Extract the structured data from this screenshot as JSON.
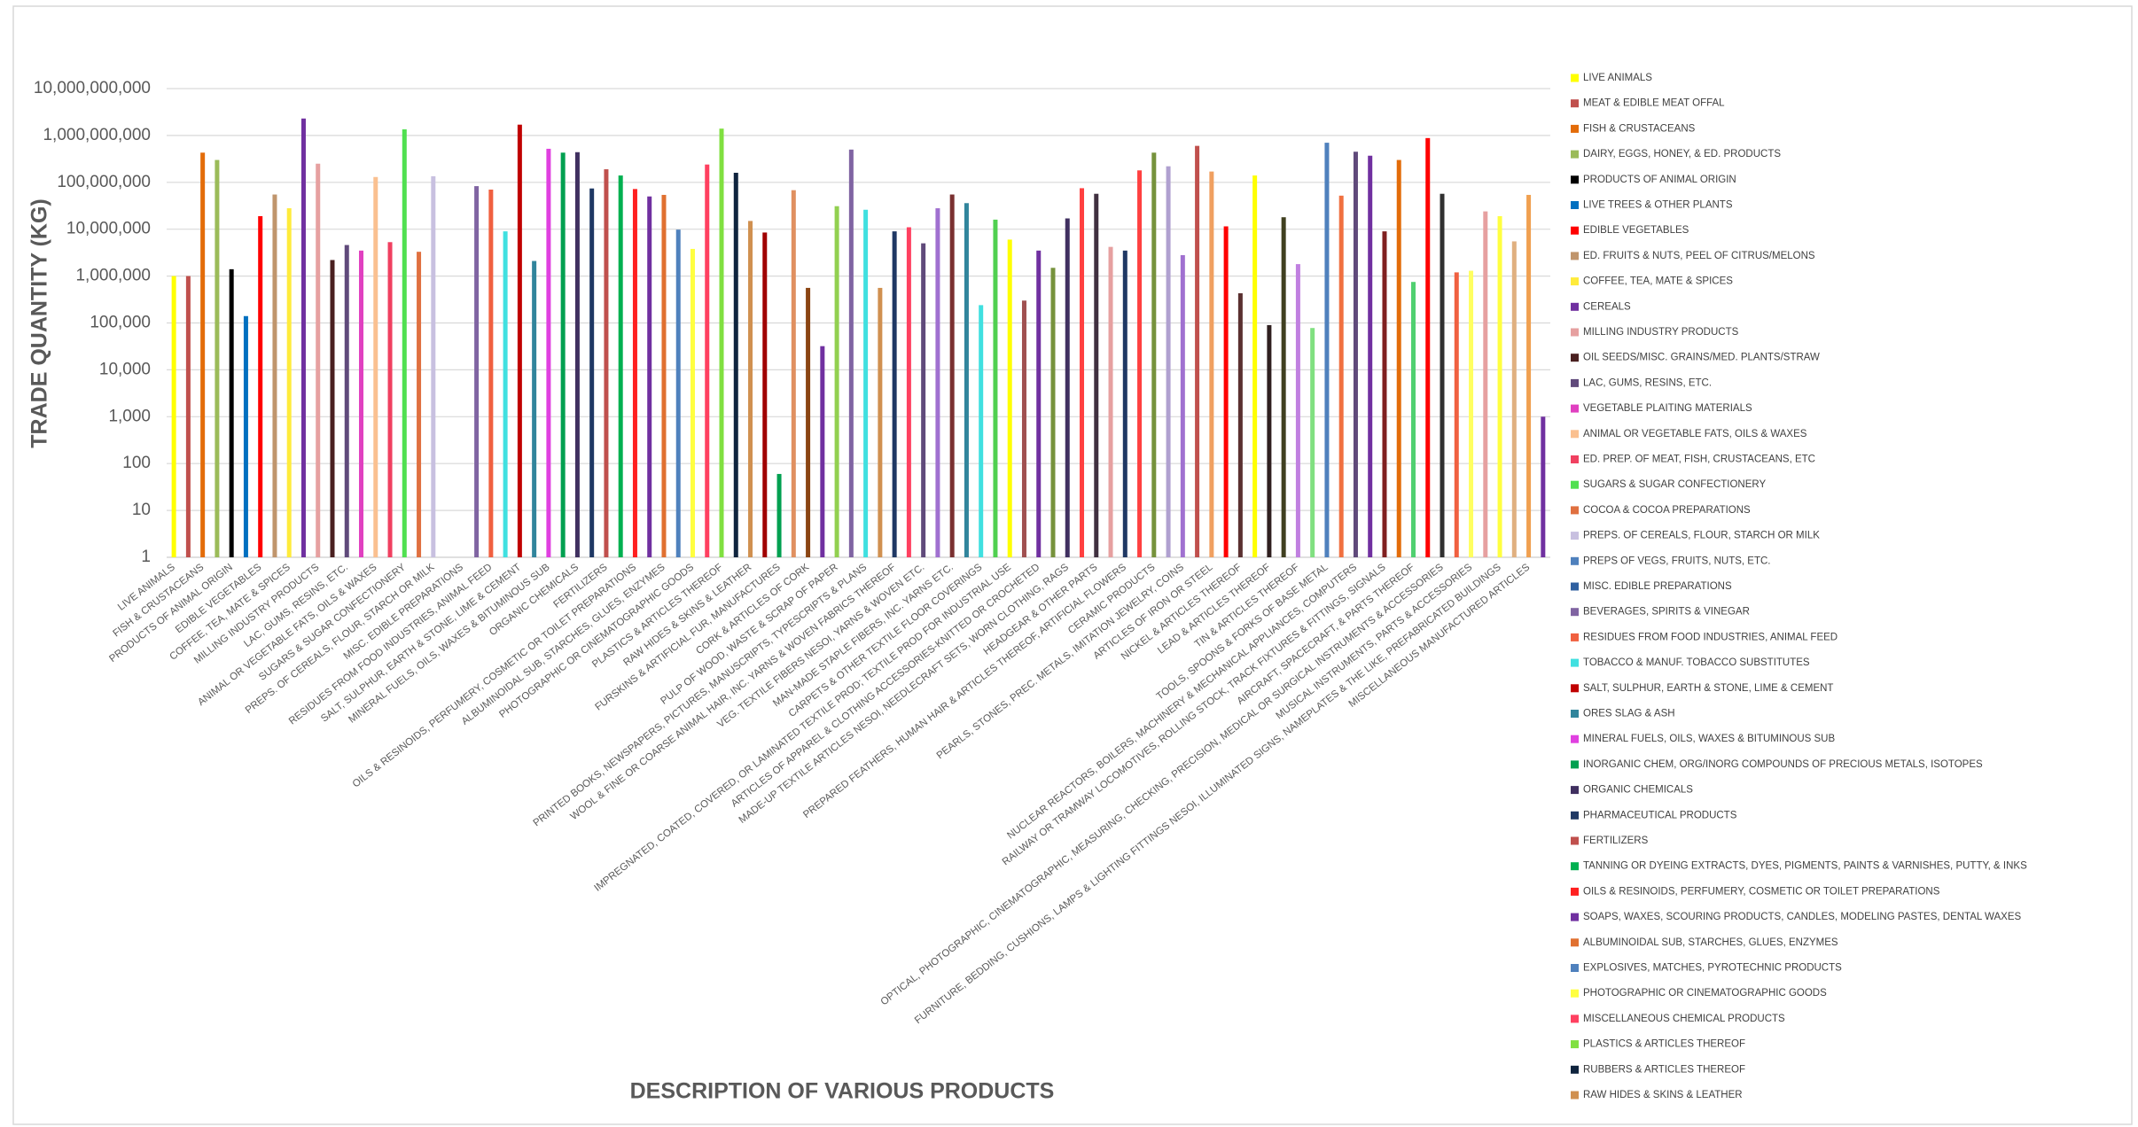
{
  "chart_data": {
    "type": "bar",
    "y_label": "TRADE QUANTITY (KG)",
    "x_label": "DESCRIPTION OF VARIOUS PRODUCTS",
    "log_scale": true,
    "grid": true,
    "legend_position": "right",
    "ylim": [
      1,
      10000000000
    ],
    "yticks": [
      1,
      10,
      100,
      {
        "value": 1000,
        "label": "1,000"
      },
      {
        "value": 10000,
        "label": "10,000"
      },
      {
        "value": 100000,
        "label": "100,000"
      },
      {
        "value": 1000000,
        "label": "1,000,000"
      },
      {
        "value": 10000000,
        "label": "10,000,000"
      },
      {
        "value": 100000000,
        "label": "100,000,000"
      },
      {
        "value": 1000000000,
        "label": "1,000,000,000"
      },
      {
        "value": 10000000000,
        "label": "10,000,000,000"
      }
    ],
    "categories": [
      "LIVE ANIMALS",
      null,
      "FISH & CRUSTACEANS",
      null,
      "PRODUCTS OF ANIMAL ORIGIN",
      null,
      "EDIBLE VEGETABLES",
      null,
      "COFFEE, TEA, MATE & SPICES",
      null,
      "MILLING INDUSTRY PRODUCTS",
      null,
      "LAC, GUMS, RESINS, ETC.",
      null,
      "ANIMAL OR VEGETABLE FATS, OILS & WAXES",
      null,
      "SUGARS & SUGAR CONFECTIONERY",
      null,
      "PREPS. OF CEREALS, FLOUR, STARCH OR MILK",
      null,
      "MISC. EDIBLE PREPARATIONS",
      null,
      "RESIDUES FROM FOOD INDUSTRIES, ANIMAL FEED",
      null,
      "SALT, SULPHUR, EARTH & STONE, LIME & CEMENT",
      null,
      "MINERAL FUELS, OILS, WAXES & BITUMINOUS SUB",
      null,
      "ORGANIC CHEMICALS",
      null,
      "FERTILIZERS",
      null,
      "OILS & RESINOIDS, PERFUMERY, COSMETIC OR TOILET PREPARATIONS",
      null,
      "ALBUMINOIDAL SUB, STARCHES, GLUES, ENZYMES",
      null,
      "PHOTOGRAPHIC OR CINEMATOGRAPHIC GOODS",
      null,
      "PLASTICS & ARTICLES THEREOF",
      null,
      "RAW HIDES & SKINS & LEATHER",
      null,
      "FURSKINS & ARTIFICIAL FUR, MANUFACTURES",
      null,
      "CORK & ARTICLES OF CORK",
      null,
      "PULP OF WOOD, WASTE & SCRAP OF PAPER",
      null,
      "PRINTED BOOKS, NEWSPAPERS, PICTURES, MANUSCRIPTS, TYPESCRIPTS & PLANS",
      null,
      "WOOL & FINE OR COARSE ANIMAL HAIR, INC. YARNS & WOVEN FABRICS THEREOF",
      null,
      "VEG. TEXTILE FIBERS NESOI, YARNS & WOVEN ETC.",
      null,
      "MAN-MADE STAPLE FIBERS, INC. YARNS ETC.",
      null,
      "CARPETS & OTHER TEXTILE FLOOR COVERINGS",
      null,
      "IMPREGNATED, COATED, COVERED, OR LAMINATED TEXTILE PROD; TEXTILE PROD FOR INDUSTRIAL USE",
      null,
      "ARTICLES OF APPAREL & CLOTHING ACCESSORIES-KNITTED OR CROCHETED",
      null,
      "MADE-UP TEXTILE ARTICLES NESOI, NEEDLECRAFT SETS, WORN CLOTHING, RAGS",
      null,
      "HEADGEAR & OTHER PARTS",
      null,
      "PREPARED FEATHERS, HUMAN HAIR & ARTICLES THEREOF, ARTIFICIAL FLOWERS",
      null,
      "CERAMIC PRODUCTS",
      null,
      "PEARLS, STONES, PREC. METALS, IMITATION JEWELRY, COINS",
      null,
      "ARTICLES OF IRON OR STEEL",
      null,
      "NICKEL & ARTICLES THEREOF",
      null,
      "LEAD & ARTICLES THEREOF",
      null,
      "TIN & ARTICLES THEREOF",
      null,
      "TOOLS, SPOONS & FORKS OF BASE METAL",
      null,
      "NUCLEAR REACTORS, BOILERS, MACHINERY & MECHANICAL APPLIANCES, COMPUTERS",
      null,
      "RAILWAY OR TRAMWAY LOCOMOTIVES, ROLLING STOCK, TRACK FIXTURES & FITTINGS, SIGNALS",
      null,
      "AIRCRAFT, SPACECRAFT, & PARTS THEREOF",
      null,
      "OPTICAL, PHOTOGRAPHIC, CINEMATOGRAPHIC, MEASURING, CHECKING, PRECISION, MEDICAL OR SURGICAL INSTRUMENTS & ACCESSORIES",
      null,
      "MUSICAL INSTRUMENTS, PARTS & ACCESSORIES",
      null,
      "FURNITURE, BEDDING, CUSHIONS, LAMPS & LIGHTING FITTINGS NESOI, ILLUMINATED SIGNS, NAMEPLATES & THE LIKE, PREFABRICATED BUILDINGS",
      null,
      "MISCELLANEOUS MANUFACTURED ARTICLES",
      null
    ],
    "values": [
      1000000,
      1000000,
      430000000,
      300000000,
      1400000,
      140000,
      19000000,
      55000000,
      28000000,
      2300000000,
      250000000,
      2200000,
      4600000,
      3500000,
      130000000,
      5300000,
      1350000000,
      3300000,
      135000000,
      null,
      null,
      83000000,
      70000000,
      9000000,
      1700000000,
      2100000,
      520000000,
      430000000,
      440000000,
      74000000,
      190000000,
      140000000,
      72000000,
      50000000,
      54000000,
      9800000,
      3800000,
      240000000,
      1400000000,
      160000000,
      15000000,
      8500000,
      60,
      68000000,
      560000,
      32000,
      31000000,
      500000000,
      26000000,
      560000,
      9000000,
      11000000,
      5000000,
      28000000,
      55000000,
      36000000,
      240000,
      16000000,
      6000000,
      300000,
      3500000,
      1500000,
      17000000,
      75000000,
      57000000,
      4200000,
      3500000,
      180000000,
      430000000,
      220000000,
      2800000,
      600000000,
      170000000,
      11500000,
      430000,
      140000000,
      90000,
      18000000,
      1800000,
      78000,
      700000000,
      52000000,
      450000000,
      370000000,
      9000000,
      300000000,
      750000,
      880000000,
      57000000,
      1200000,
      1300000,
      24000000,
      19000000,
      5500000,
      54000000,
      1000
    ],
    "colors": [
      "#ffff00",
      "#c0504d",
      "#e36c09",
      "#9bbb59",
      "#000000",
      "#0070c0",
      "#ff0000",
      "#c0956c",
      "#ffeb3b",
      "#7030a0",
      "#e6a0a0",
      "#4a2020",
      "#604a7b",
      "#e040c0",
      "#fac090",
      "#f04060",
      "#50e050",
      "#e07040",
      "#c8c0e0",
      "#4f81bd",
      "#3060a0",
      "#8064a2",
      "#f06040",
      "#40e0e0",
      "#c00000",
      "#31859c",
      "#e040e0",
      "#00a050",
      "#403060",
      "#1f3864",
      "#c0504d",
      "#00b050",
      "#ff2020",
      "#7030a0",
      "#e07030",
      "#4f81bd",
      "#ffff40",
      "#ff4060",
      "#80e040",
      "#0f243e",
      "#d09050",
      "#a00000",
      "#00a050",
      "#e09060",
      "#8b4513",
      "#7030a0",
      "#92d050",
      "#8064a2",
      "#40e0e0",
      "#d09050",
      "#1f3864",
      "#ff4060",
      "#604a7b",
      "#a070d0",
      "#7a3030",
      "#31859c",
      "#40e0e0",
      "#50d050",
      "#ffff00",
      "#a05050",
      "#7030a0",
      "#76923c",
      "#403060",
      "#ff4040",
      "#403040",
      "#e6a0a0",
      "#1f3864",
      "#ff4040",
      "#76923c",
      "#b0a0d0",
      "#a070d0",
      "#c0504d",
      "#f0a060",
      "#ff0000",
      "#5a3030",
      "#ffff00",
      "#302020",
      "#404020",
      "#c080e0",
      "#80e080",
      "#4f81bd",
      "#f07040",
      "#604a7b",
      "#7030a0",
      "#802020",
      "#e36c09",
      "#50d070",
      "#ff0000",
      "#303030",
      "#f06040",
      "#ffff60",
      "#e6a0a0",
      "#ffff40",
      "#e0b080",
      "#f0a050",
      "#7030a0"
    ],
    "legend": [
      "LIVE ANIMALS",
      "MEAT & EDIBLE MEAT OFFAL",
      "FISH & CRUSTACEANS",
      "DAIRY, EGGS, HONEY, & ED. PRODUCTS",
      "PRODUCTS OF ANIMAL ORIGIN",
      "LIVE TREES & OTHER PLANTS",
      "EDIBLE VEGETABLES",
      "ED. FRUITS & NUTS, PEEL OF CITRUS/MELONS",
      "COFFEE, TEA, MATE & SPICES",
      "CEREALS",
      "MILLING INDUSTRY PRODUCTS",
      "OIL SEEDS/MISC. GRAINS/MED. PLANTS/STRAW",
      "LAC, GUMS, RESINS, ETC.",
      "VEGETABLE PLAITING MATERIALS",
      "ANIMAL OR VEGETABLE FATS, OILS & WAXES",
      "ED. PREP. OF MEAT, FISH, CRUSTACEANS, ETC",
      "SUGARS & SUGAR CONFECTIONERY",
      "COCOA & COCOA PREPARATIONS",
      "PREPS. OF CEREALS, FLOUR, STARCH OR MILK",
      "PREPS OF VEGS, FRUITS, NUTS, ETC.",
      "MISC. EDIBLE PREPARATIONS",
      "BEVERAGES, SPIRITS & VINEGAR",
      "RESIDUES FROM FOOD INDUSTRIES, ANIMAL FEED",
      "TOBACCO & MANUF. TOBACCO SUBSTITUTES",
      "SALT, SULPHUR, EARTH & STONE, LIME & CEMENT",
      "ORES SLAG & ASH",
      "MINERAL FUELS, OILS, WAXES & BITUMINOUS SUB",
      "INORGANIC CHEM, ORG/INORG COMPOUNDS OF PRECIOUS METALS, ISOTOPES",
      "ORGANIC CHEMICALS",
      "PHARMACEUTICAL PRODUCTS",
      "FERTILIZERS",
      "TANNING OR DYEING EXTRACTS, DYES, PIGMENTS, PAINTS & VARNISHES, PUTTY, & INKS",
      "OILS & RESINOIDS, PERFUMERY, COSMETIC OR TOILET PREPARATIONS",
      "SOAPS, WAXES, SCOURING PRODUCTS, CANDLES, MODELING PASTES, DENTAL WAXES",
      "ALBUMINOIDAL SUB, STARCHES, GLUES, ENZYMES",
      "EXPLOSIVES, MATCHES, PYROTECHNIC PRODUCTS",
      "PHOTOGRAPHIC OR CINEMATOGRAPHIC GOODS",
      "MISCELLANEOUS CHEMICAL PRODUCTS",
      "PLASTICS & ARTICLES THEREOF",
      "RUBBERS & ARTICLES THEREOF",
      "RAW HIDES & SKINS & LEATHER"
    ]
  }
}
